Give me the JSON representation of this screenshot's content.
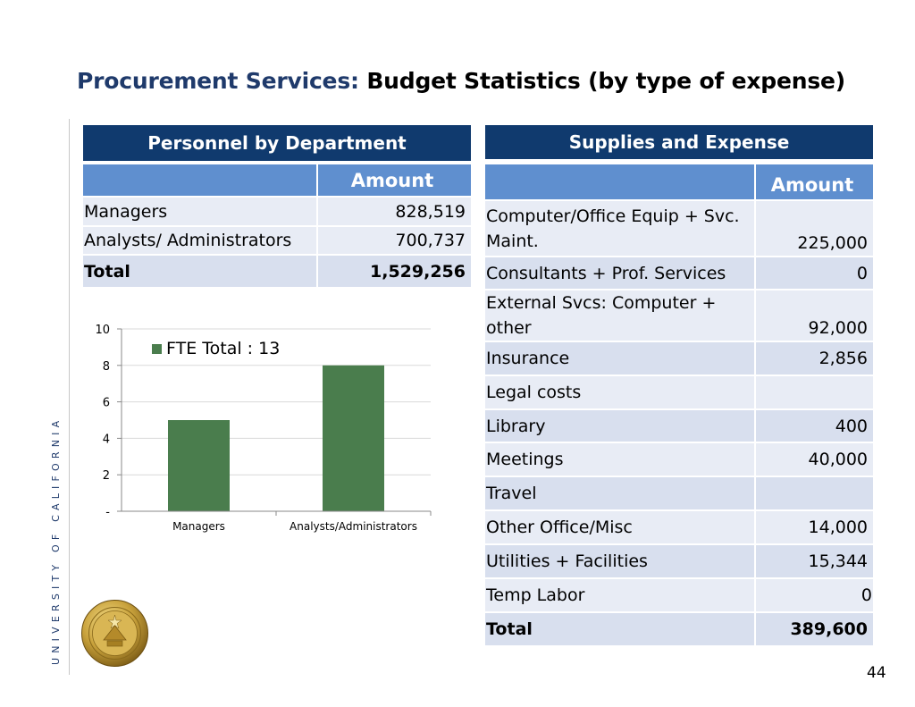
{
  "title": {
    "prefix": "Procurement Services:",
    "main": "Budget Statistics (by type of expense)"
  },
  "sidebar_text": "UNIVERSITY OF CALIFORNIA",
  "personnel": {
    "header": "Personnel by Department",
    "amount_label": "Amount",
    "rows": [
      {
        "label": "Managers",
        "amount": "828,519"
      },
      {
        "label": "Analysts/ Administrators",
        "amount": "700,737"
      }
    ],
    "total": {
      "label": "Total",
      "amount": "1,529,256"
    }
  },
  "supplies": {
    "header": "Supplies and Expense",
    "amount_label": "Amount",
    "rows": [
      {
        "label": "Computer/Office Equip + Svc. Maint.",
        "amount": "225,000"
      },
      {
        "label": "Consultants + Prof. Services",
        "amount": "0"
      },
      {
        "label": "External Svcs: Computer + other",
        "amount": "92,000"
      },
      {
        "label": "Insurance",
        "amount": "2,856"
      },
      {
        "label": "Legal costs",
        "amount": ""
      },
      {
        "label": "Library",
        "amount": "400"
      },
      {
        "label": "Meetings",
        "amount": "40,000"
      },
      {
        "label": "Travel",
        "amount": ""
      },
      {
        "label": "Other Office/Misc",
        "amount": "14,000"
      },
      {
        "label": "Utilities + Facilities",
        "amount": "15,344"
      },
      {
        "label": "Temp Labor",
        "amount": "0"
      }
    ],
    "total": {
      "label": "Total",
      "amount": "389,600"
    }
  },
  "chart_data": {
    "type": "bar",
    "categories": [
      "Managers",
      "Analysts/Administrators"
    ],
    "series": [
      {
        "name": "FTE Total : 13",
        "values": [
          5,
          8
        ]
      }
    ],
    "ylim": [
      0,
      10
    ],
    "yticks": [
      "-",
      "2",
      "4",
      "6",
      "8",
      "10"
    ],
    "grid": true,
    "legend": "top-left",
    "bar_color": "#4a7d4d"
  },
  "page_number": "44"
}
